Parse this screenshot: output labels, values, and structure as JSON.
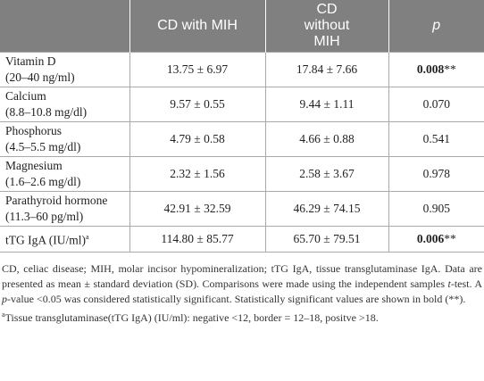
{
  "table": {
    "header": [
      "CD with MIH",
      "CD without MIH",
      "p"
    ],
    "rows": [
      {
        "name": "Vitamin D",
        "range": "(20–40 ng/ml)",
        "cells": [
          "13.75 ± 6.97",
          "17.84 ± 7.66"
        ],
        "p": {
          "bold": "0.008",
          "suffix": "**"
        }
      },
      {
        "name": "Calcium",
        "range": "(8.8–10.8 mg/dl)",
        "cells": [
          "9.57 ± 0.55",
          "9.44 ± 1.11"
        ],
        "p": "0.070"
      },
      {
        "name": "Phosphorus",
        "range": "(4.5–5.5 mg/dl)",
        "cells": [
          "4.79 ± 0.58",
          "4.66 ± 0.88"
        ],
        "p": "0.541"
      },
      {
        "name": "Magnesium",
        "range": "(1.6–2.6 mg/dl)",
        "cells": [
          "2.32 ± 1.56",
          "2.58 ± 3.67"
        ],
        "p": "0.978"
      },
      {
        "name": "Parathyroid hormone",
        "range": "(11.3–60 pg/ml)",
        "cells": [
          "42.91 ± 32.59",
          "46.29 ± 74.15"
        ],
        "p": "0.905"
      },
      {
        "name": "tTG IgA (IU/ml)",
        "note": "a",
        "cells": [
          "114.80 ± 85.77",
          "65.70 ± 79.51"
        ],
        "p": {
          "bold": "0.006",
          "suffix": "**"
        }
      }
    ]
  },
  "footnote": {
    "parts": [
      "CD, celiac disease; MIH, molar incisor hypomineralization; tTG IgA, tissue transglutaminase IgA. Data are presented as mean ± standard deviation (SD). Comparisons were made using the independent samples ",
      "t",
      "-test. A ",
      "p",
      "-value <0.05 was considered statistically significant. Statistically significant values are shown in bold (**)."
    ],
    "note_mark": "a",
    "note": "Tissue transglutaminase(tTG IgA) (IU/ml): negative <12, border = 12–18, positve >18."
  }
}
